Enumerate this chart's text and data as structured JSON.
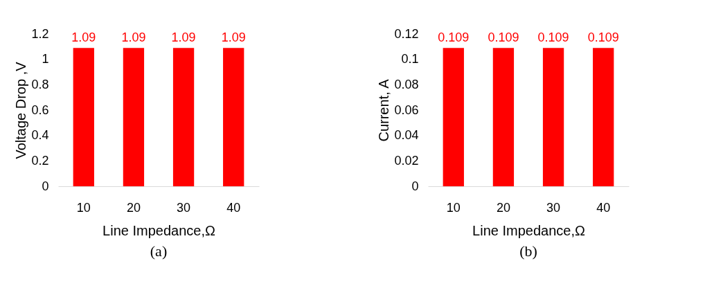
{
  "chart_data": [
    {
      "type": "bar",
      "categories": [
        "10",
        "20",
        "30",
        "40"
      ],
      "values": [
        1.09,
        1.09,
        1.09,
        1.09
      ],
      "color": "#ff0000",
      "xlabel": "Line Impedance,Ω",
      "ylabel": "Voltage Drop ,V",
      "ylim": [
        0,
        1.2
      ],
      "yticks": [
        0,
        0.2,
        0.4,
        0.6,
        0.8,
        1,
        1.2
      ],
      "data_labels": true,
      "grid": false,
      "annotations": [
        "(a)"
      ]
    },
    {
      "type": "bar",
      "categories": [
        "10",
        "20",
        "30",
        "40"
      ],
      "values": [
        0.109,
        0.109,
        0.109,
        0.109
      ],
      "color": "#ff0000",
      "xlabel": "Line Impedance,Ω",
      "ylabel": "Current, A",
      "ylim": [
        0,
        0.12
      ],
      "yticks": [
        0,
        0.02,
        0.04,
        0.06,
        0.08,
        0.1,
        0.12
      ],
      "data_labels": true,
      "grid": false,
      "annotations": [
        "(b)"
      ]
    }
  ]
}
